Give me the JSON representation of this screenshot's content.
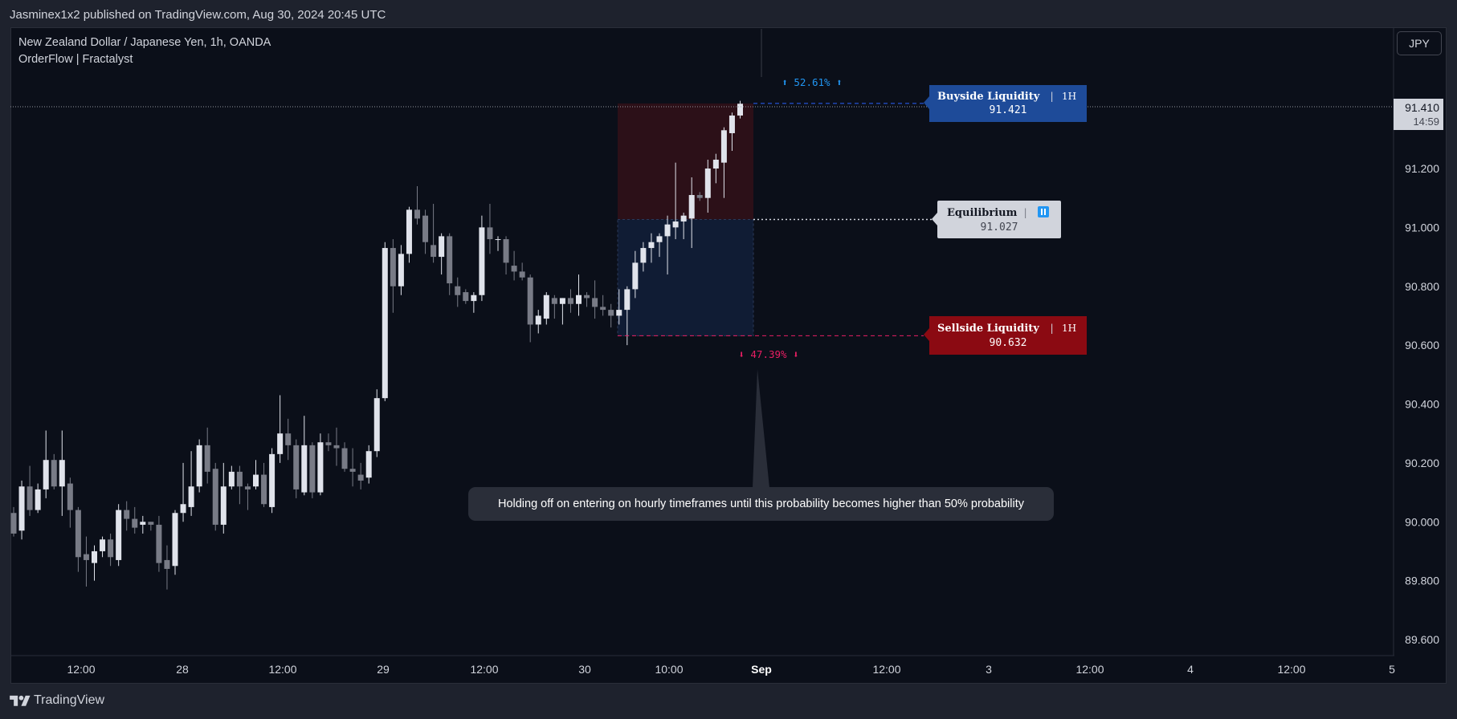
{
  "header": {
    "publish_line": "Jasminex1x2 published on TradingView.com, Aug 30, 2024 20:45 UTC"
  },
  "chart": {
    "symbol_title": "New Zealand Dollar / Japanese Yen, 1h, OANDA",
    "indicator_title": "OrderFlow | Fractalyst",
    "currency_button": "JPY",
    "last_price": "91.410",
    "countdown": "14:59",
    "colors": {
      "background": "#0b0f19",
      "bull_candle": "#e0e3eb",
      "bear_candle": "#787b86",
      "premium_zone": "#2c1018",
      "discount_zone": "#101c34",
      "buyside": "#1e4b99",
      "sellside": "#8b0a12",
      "equilibrium": "#d1d4dc",
      "up_pct": "#2196f3",
      "down_pct": "#e91e63"
    }
  },
  "annotations": {
    "buyside": {
      "title": "Buyside Liquidity",
      "sep": "|",
      "tf": "1H",
      "value": "91.421"
    },
    "equilibrium": {
      "title": "Equilibrium",
      "sep": "|",
      "icon": "pause-icon",
      "value": "91.027"
    },
    "sellside": {
      "title": "Sellside Liquidity",
      "sep": "|",
      "tf": "1H",
      "value": "90.632"
    },
    "up_pct": "⬆ 52.61% ⬆",
    "down_pct": "⬇ 47.39% ⬇",
    "note": "Holding off on entering on hourly timeframes until this probability becomes higher than 50% probability"
  },
  "chart_data": {
    "type": "candlestick",
    "ylim": [
      89.55,
      91.5
    ],
    "y_ticks": [
      "91.200",
      "91.000",
      "90.800",
      "90.600",
      "90.400",
      "90.200",
      "90.000",
      "89.800",
      "89.600"
    ],
    "x_ticks": [
      "12:00",
      "28",
      "12:00",
      "29",
      "12:00",
      "30",
      "10:00",
      "Sep",
      "12:00",
      "3",
      "12:00",
      "4",
      "12:00",
      "5"
    ],
    "levels": {
      "buyside": 91.421,
      "equilibrium": 91.027,
      "sellside": 90.632,
      "last": 91.41
    },
    "candles": [
      [
        90.03,
        90.05,
        89.95,
        89.96
      ],
      [
        89.97,
        90.14,
        89.94,
        90.12
      ],
      [
        90.12,
        90.19,
        90.02,
        90.04
      ],
      [
        90.04,
        90.13,
        90.03,
        90.11
      ],
      [
        90.11,
        90.31,
        90.08,
        90.21
      ],
      [
        90.21,
        90.23,
        90.11,
        90.12
      ],
      [
        90.12,
        90.31,
        90.02,
        90.21
      ],
      [
        90.13,
        90.15,
        89.98,
        90.04
      ],
      [
        90.04,
        90.05,
        89.83,
        89.88
      ],
      [
        89.89,
        89.95,
        89.78,
        89.87
      ],
      [
        89.86,
        89.92,
        89.8,
        89.9
      ],
      [
        89.9,
        89.95,
        89.88,
        89.94
      ],
      [
        89.94,
        89.96,
        89.85,
        89.88
      ],
      [
        89.87,
        90.06,
        89.85,
        90.04
      ],
      [
        90.04,
        90.07,
        89.97,
        90.01
      ],
      [
        90.01,
        90.05,
        89.96,
        89.98
      ],
      [
        89.99,
        90.02,
        89.96,
        90.0
      ],
      [
        90.0,
        90.0,
        89.97,
        89.99
      ],
      [
        89.99,
        90.02,
        89.83,
        89.86
      ],
      [
        89.87,
        89.92,
        89.77,
        89.84
      ],
      [
        89.85,
        90.04,
        89.82,
        90.03
      ],
      [
        90.03,
        90.2,
        90.0,
        90.06
      ],
      [
        90.05,
        90.24,
        90.02,
        90.12
      ],
      [
        90.12,
        90.28,
        90.1,
        90.26
      ],
      [
        90.26,
        90.32,
        90.13,
        90.17
      ],
      [
        90.18,
        90.2,
        89.97,
        89.99
      ],
      [
        89.99,
        90.2,
        89.96,
        90.12
      ],
      [
        90.12,
        90.19,
        90.11,
        90.17
      ],
      [
        90.17,
        90.19,
        90.06,
        90.12
      ],
      [
        90.12,
        90.13,
        90.04,
        90.11
      ],
      [
        90.12,
        90.21,
        90.11,
        90.16
      ],
      [
        90.16,
        90.2,
        90.05,
        90.06
      ],
      [
        90.05,
        90.25,
        90.03,
        90.23
      ],
      [
        90.23,
        90.43,
        90.2,
        90.3
      ],
      [
        90.3,
        90.35,
        90.21,
        90.26
      ],
      [
        90.26,
        90.28,
        90.08,
        90.11
      ],
      [
        90.1,
        90.36,
        90.09,
        90.26
      ],
      [
        90.26,
        90.27,
        90.08,
        90.1
      ],
      [
        90.1,
        90.3,
        90.09,
        90.27
      ],
      [
        90.27,
        90.3,
        90.24,
        90.26
      ],
      [
        90.26,
        90.32,
        90.19,
        90.25
      ],
      [
        90.25,
        90.27,
        90.17,
        90.18
      ],
      [
        90.18,
        90.25,
        90.12,
        90.17
      ],
      [
        90.16,
        90.2,
        90.11,
        90.14
      ],
      [
        90.15,
        90.26,
        90.13,
        90.24
      ],
      [
        90.24,
        90.45,
        90.22,
        90.42
      ],
      [
        90.42,
        90.95,
        90.41,
        90.93
      ],
      [
        90.93,
        90.96,
        90.71,
        90.8
      ],
      [
        90.8,
        90.94,
        90.77,
        90.91
      ],
      [
        90.91,
        91.07,
        90.88,
        91.06
      ],
      [
        91.06,
        91.14,
        91.01,
        91.03
      ],
      [
        91.04,
        91.06,
        90.91,
        90.95
      ],
      [
        90.94,
        91.08,
        90.88,
        90.9
      ],
      [
        90.9,
        90.98,
        90.84,
        90.97
      ],
      [
        90.97,
        90.98,
        90.77,
        90.81
      ],
      [
        90.8,
        90.83,
        90.73,
        90.77
      ],
      [
        90.78,
        90.79,
        90.74,
        90.75
      ],
      [
        90.75,
        90.78,
        90.71,
        90.77
      ],
      [
        90.77,
        91.04,
        90.75,
        91.0
      ],
      [
        91.0,
        91.08,
        90.91,
        90.96
      ],
      [
        90.96,
        90.97,
        90.92,
        90.96
      ],
      [
        90.96,
        90.97,
        90.84,
        90.88
      ],
      [
        90.87,
        90.92,
        90.82,
        90.85
      ],
      [
        90.85,
        90.88,
        90.82,
        90.83
      ],
      [
        90.83,
        90.84,
        90.61,
        90.67
      ],
      [
        90.67,
        90.72,
        90.64,
        90.7
      ],
      [
        90.69,
        90.78,
        90.67,
        90.77
      ],
      [
        90.76,
        90.77,
        90.69,
        90.74
      ],
      [
        90.74,
        90.76,
        90.67,
        90.76
      ],
      [
        90.76,
        90.79,
        90.71,
        90.74
      ],
      [
        90.74,
        90.84,
        90.7,
        90.77
      ],
      [
        90.77,
        90.78,
        90.73,
        90.76
      ],
      [
        90.76,
        90.82,
        90.69,
        90.73
      ],
      [
        90.73,
        90.77,
        90.7,
        90.72
      ],
      [
        90.72,
        90.74,
        90.66,
        90.7
      ],
      [
        90.7,
        90.79,
        90.67,
        90.72
      ],
      [
        90.72,
        90.8,
        90.6,
        90.79
      ],
      [
        90.79,
        90.92,
        90.76,
        90.88
      ],
      [
        90.88,
        90.95,
        90.85,
        90.93
      ],
      [
        90.93,
        90.98,
        90.88,
        90.95
      ],
      [
        90.95,
        90.98,
        90.9,
        90.97
      ],
      [
        90.97,
        91.04,
        90.84,
        91.01
      ],
      [
        91.0,
        91.22,
        90.96,
        91.02
      ],
      [
        91.02,
        91.05,
        90.96,
        91.04
      ],
      [
        91.03,
        91.17,
        90.93,
        91.11
      ],
      [
        91.11,
        91.12,
        91.09,
        91.1
      ],
      [
        91.1,
        91.23,
        91.05,
        91.2
      ],
      [
        91.2,
        91.25,
        91.15,
        91.23
      ],
      [
        91.22,
        91.34,
        91.1,
        91.33
      ],
      [
        91.32,
        91.39,
        91.26,
        91.38
      ],
      [
        91.38,
        91.43,
        91.37,
        91.42
      ]
    ]
  }
}
